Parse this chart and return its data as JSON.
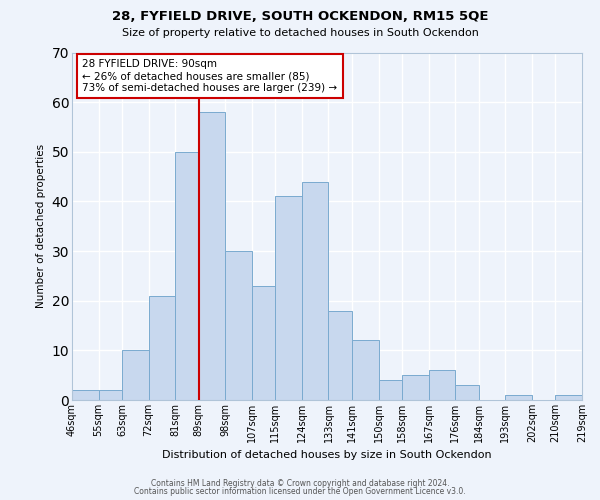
{
  "title": "28, FYFIELD DRIVE, SOUTH OCKENDON, RM15 5QE",
  "subtitle": "Size of property relative to detached houses in South Ockendon",
  "xlabel": "Distribution of detached houses by size in South Ockendon",
  "ylabel": "Number of detached properties",
  "bar_color": "#c8d8ee",
  "bar_edge_color": "#7aaacf",
  "bin_edges": [
    46,
    55,
    63,
    72,
    81,
    89,
    98,
    107,
    115,
    124,
    133,
    141,
    150,
    158,
    167,
    176,
    184,
    193,
    202,
    210,
    219
  ],
  "bar_heights": [
    2,
    2,
    10,
    21,
    50,
    58,
    30,
    23,
    41,
    44,
    18,
    12,
    4,
    5,
    6,
    3,
    0,
    1,
    0,
    1
  ],
  "tick_labels": [
    "46sqm",
    "55sqm",
    "63sqm",
    "72sqm",
    "81sqm",
    "89sqm",
    "98sqm",
    "107sqm",
    "115sqm",
    "124sqm",
    "133sqm",
    "141sqm",
    "150sqm",
    "158sqm",
    "167sqm",
    "176sqm",
    "184sqm",
    "193sqm",
    "202sqm",
    "210sqm",
    "219sqm"
  ],
  "vline_x": 89,
  "vline_color": "#cc0000",
  "annotation_title": "28 FYFIELD DRIVE: 90sqm",
  "annotation_line1": "← 26% of detached houses are smaller (85)",
  "annotation_line2": "73% of semi-detached houses are larger (239) →",
  "annotation_box_color": "#ffffff",
  "annotation_box_edge": "#cc0000",
  "ylim": [
    0,
    70
  ],
  "yticks": [
    0,
    10,
    20,
    30,
    40,
    50,
    60,
    70
  ],
  "footer1": "Contains HM Land Registry data © Crown copyright and database right 2024.",
  "footer2": "Contains public sector information licensed under the Open Government Licence v3.0.",
  "background_color": "#eef3fb",
  "grid_color": "#ffffff"
}
